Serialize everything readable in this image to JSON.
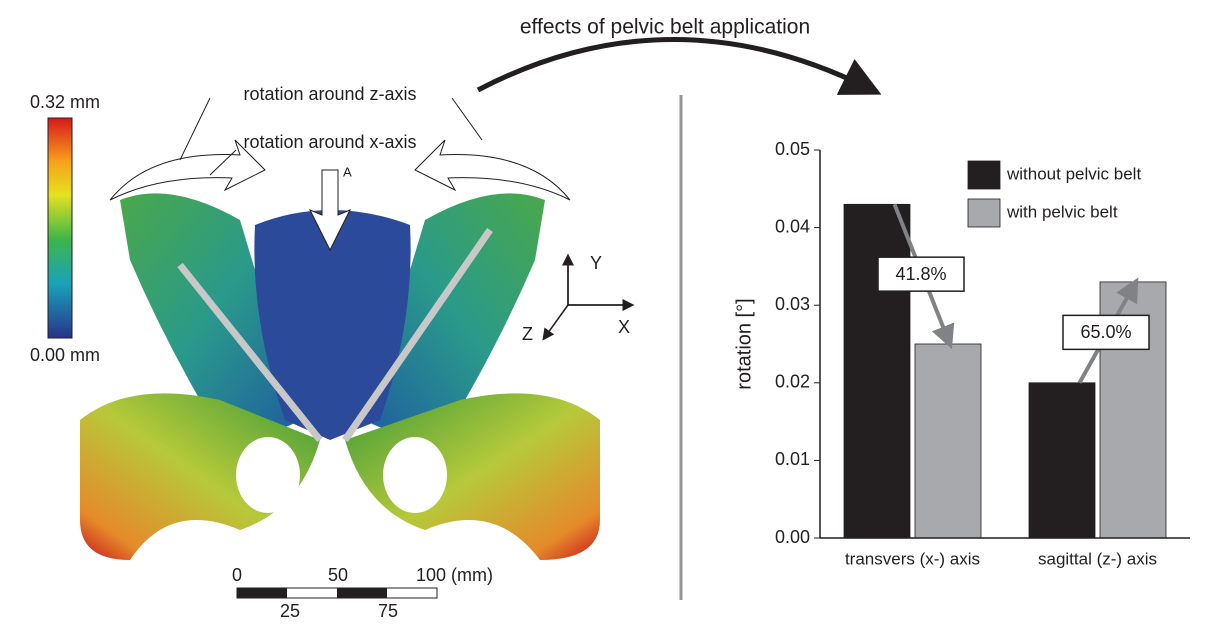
{
  "title": "effects of pelvic belt application",
  "model": {
    "colorbar": {
      "max_label": "0.32 mm",
      "min_label": "0.00 mm"
    },
    "annotations": [
      "rotation around z-axis",
      "rotation around x-axis",
      "A"
    ],
    "axes": [
      "Y",
      "X",
      "Z"
    ],
    "scalebar": {
      "top_labels": [
        "0",
        "50",
        "100 (mm)"
      ],
      "bottom_labels": [
        "25",
        "75"
      ]
    }
  },
  "chart_data": {
    "type": "bar",
    "y_label": "rotation [°]",
    "categories": [
      "transvers (x-) axis",
      "sagittal (z-) axis"
    ],
    "series": [
      {
        "name": "without pelvic belt",
        "color": "#231f20",
        "values": [
          0.043,
          0.02
        ]
      },
      {
        "name": "with pelvic belt",
        "color": "#a7a9ac",
        "values": [
          0.025,
          0.033
        ]
      }
    ],
    "annotations": [
      "41.8%",
      "65.0%"
    ],
    "ylim": [
      0,
      0.05
    ],
    "yticks": [
      {
        "value": 0,
        "label": "0.00"
      },
      0.01,
      0.02,
      0.03,
      0.04,
      0.05
    ],
    "legend": "top-right"
  }
}
